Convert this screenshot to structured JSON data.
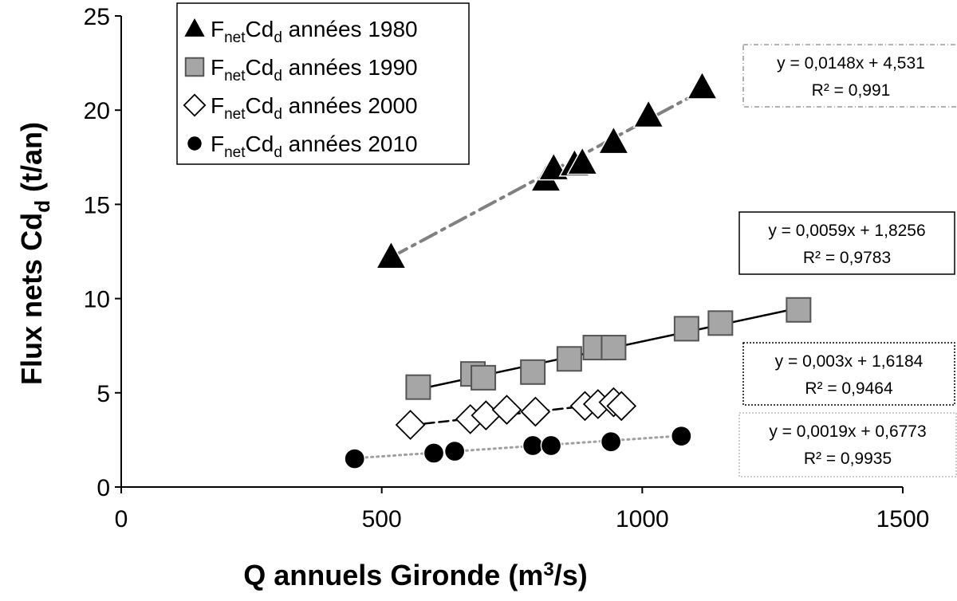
{
  "chart_data": {
    "type": "scatter",
    "xlabel": {
      "main": "Q annuels Gironde (m",
      "sup": "3",
      "end": "/s)"
    },
    "ylabel": {
      "main": "Flux nets Cd",
      "sub": "d",
      "end": " (t/an)"
    },
    "xlim": [
      0,
      1500
    ],
    "ylim": [
      0,
      25
    ],
    "xticks": [
      "0",
      "500",
      "1000",
      "1500"
    ],
    "yticks": [
      "0",
      "5",
      "10",
      "15",
      "20",
      "25"
    ],
    "grid": false,
    "legend_position": "top-left",
    "series": [
      {
        "key": "s1980",
        "legend": {
          "pre": "F",
          "sub1": "net",
          "mid": "Cd",
          "sub2": "d",
          "post": " années 1980"
        },
        "marker": "triangle",
        "color": "#000000",
        "points": [
          [
            518,
            12.2
          ],
          [
            815,
            16.3
          ],
          [
            830,
            16.9
          ],
          [
            870,
            17.1
          ],
          [
            885,
            17.2
          ],
          [
            945,
            18.3
          ],
          [
            1012,
            19.7
          ],
          [
            1115,
            21.2
          ]
        ],
        "fit": {
          "slope": 0.0148,
          "intercept": 4.531,
          "r2": 0.991,
          "x_range": [
            518,
            1115
          ],
          "line_color": "#808080",
          "line_style": "dashdot"
        },
        "equation": "y = 0,0148x + 4,531",
        "r2_label": "R² = 0,991"
      },
      {
        "key": "s1990",
        "legend": {
          "pre": "F",
          "sub1": "net",
          "mid": "Cd",
          "sub2": "d",
          "post": " années 1990"
        },
        "marker": "square",
        "color": "#a6a6a6",
        "points": [
          [
            570,
            5.3
          ],
          [
            675,
            6.0
          ],
          [
            695,
            5.8
          ],
          [
            790,
            6.1
          ],
          [
            860,
            6.8
          ],
          [
            910,
            7.4
          ],
          [
            945,
            7.4
          ],
          [
            1085,
            8.4
          ],
          [
            1150,
            8.7
          ],
          [
            1300,
            9.4
          ]
        ],
        "fit": {
          "slope": 0.0059,
          "intercept": 1.8256,
          "r2": 0.9783,
          "x_range": [
            570,
            1300
          ],
          "line_color": "#000000",
          "line_style": "solid"
        },
        "equation": "y = 0,0059x + 1,8256",
        "r2_label": "R² = 0,9783"
      },
      {
        "key": "s2000",
        "legend": {
          "pre": "F",
          "sub1": "net",
          "mid": "Cd",
          "sub2": "d",
          "post": " années 2000"
        },
        "marker": "diamond",
        "color": "#ffffff",
        "points": [
          [
            555,
            3.3
          ],
          [
            670,
            3.6
          ],
          [
            700,
            3.8
          ],
          [
            740,
            4.1
          ],
          [
            795,
            4.0
          ],
          [
            890,
            4.3
          ],
          [
            915,
            4.4
          ],
          [
            945,
            4.5
          ],
          [
            960,
            4.3
          ]
        ],
        "fit": {
          "slope": 0.003,
          "intercept": 1.6184,
          "r2": 0.9464,
          "x_range": [
            555,
            960
          ],
          "line_color": "#000000",
          "line_style": "dashed"
        },
        "equation": "y = 0,003x + 1,6184",
        "r2_label": "R² = 0,9464"
      },
      {
        "key": "s2010",
        "legend": {
          "pre": "F",
          "sub1": "net",
          "mid": "Cd",
          "sub2": "d",
          "post": " années 2010"
        },
        "marker": "circle",
        "color": "#000000",
        "points": [
          [
            448,
            1.5
          ],
          [
            600,
            1.8
          ],
          [
            640,
            1.9
          ],
          [
            790,
            2.2
          ],
          [
            825,
            2.2
          ],
          [
            940,
            2.4
          ],
          [
            1075,
            2.7
          ]
        ],
        "fit": {
          "slope": 0.0019,
          "intercept": 0.6773,
          "r2": 0.9935,
          "x_range": [
            448,
            1075
          ],
          "line_color": "#a0a0a0",
          "line_style": "dotted"
        },
        "equation": "y = 0,0019x + 0,6773",
        "r2_label": "R² = 0,9935"
      }
    ]
  }
}
